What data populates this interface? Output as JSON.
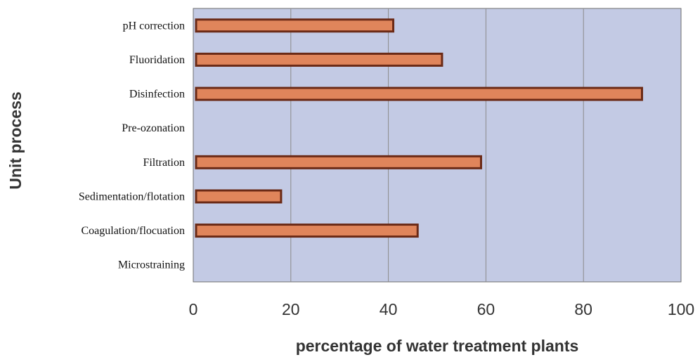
{
  "chart_data": {
    "type": "bar",
    "orientation": "horizontal",
    "title": "",
    "xlabel": "percentage of water treatment plants",
    "ylabel": "Unit process",
    "categories": [
      "pH correction",
      "Fluoridation",
      "Disinfection",
      "Pre-ozonation",
      "Filtration",
      "Sedimentation/flotation",
      "Coagulation/flocuation",
      "Microstraining"
    ],
    "values": [
      41,
      51,
      92,
      0,
      59,
      18,
      46,
      0
    ],
    "xlim": [
      0,
      100
    ],
    "xticks": [
      0,
      20,
      40,
      60,
      80,
      100
    ],
    "grid": "vertical",
    "legend": "none",
    "colors": {
      "bar_fill": "#E0855B",
      "bar_edge": "#6B2A16",
      "plot_background": "#C3CAE4",
      "gridline": "#8A8A8A"
    }
  }
}
